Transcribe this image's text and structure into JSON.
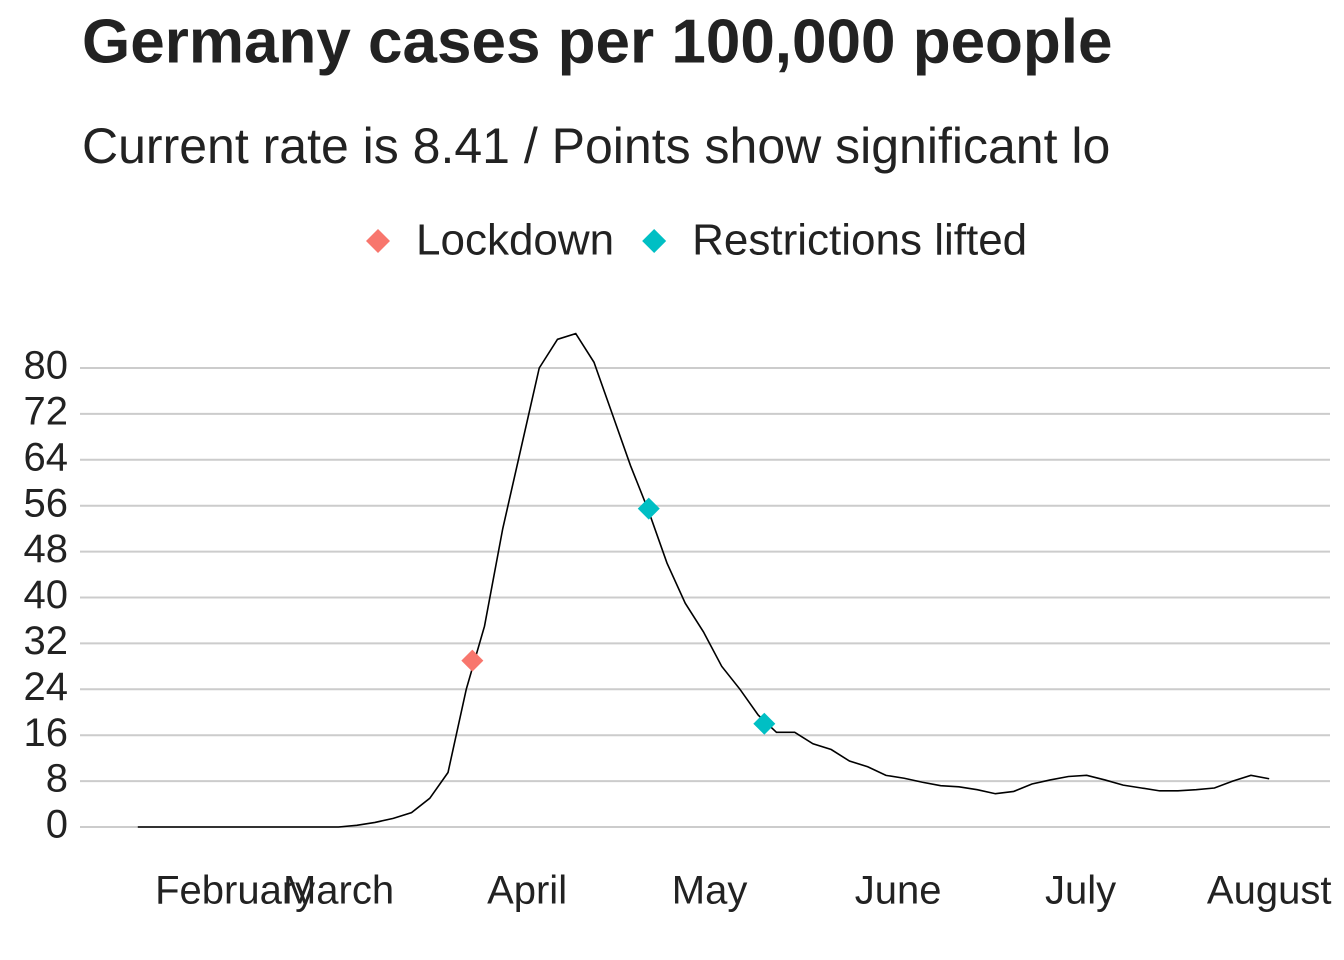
{
  "chart_data": {
    "type": "line",
    "title": "Germany cases per 100,000 people",
    "subtitle": "Current rate is  8.41  /  Points show significant lo",
    "x": [
      0,
      3,
      6,
      9,
      12,
      15,
      18,
      21,
      24,
      27,
      30,
      33,
      36,
      39,
      42,
      45,
      48,
      51,
      54,
      57,
      60,
      63,
      66,
      69,
      72,
      75,
      78,
      81,
      84,
      87,
      90,
      93,
      96,
      99,
      102,
      105,
      108,
      111,
      114,
      117,
      120,
      123,
      126,
      129,
      132,
      135,
      138,
      141,
      144,
      147,
      150,
      153,
      156,
      159,
      162,
      165,
      168,
      171,
      174,
      177,
      180,
      183,
      186
    ],
    "series": [
      {
        "color": "#000000",
        "values": [
          0,
          0,
          0,
          0,
          0,
          0,
          0,
          0,
          0,
          0,
          0,
          0,
          0.3,
          0.8,
          1.5,
          2.5,
          5,
          9.5,
          24,
          35,
          52,
          66,
          80,
          85,
          86,
          81,
          72,
          63,
          55,
          46,
          39,
          34,
          28,
          24,
          19.5,
          16.5,
          16.5,
          14.5,
          13.5,
          11.5,
          10.5,
          9,
          8.5,
          7.8,
          7.2,
          7,
          6.5,
          5.8,
          6.2,
          7.5,
          8.2,
          8.8,
          9,
          8.2,
          7.3,
          6.8,
          6.3,
          6.3,
          6.5,
          6.8,
          8,
          9,
          8.41
        ]
      }
    ],
    "points": [
      {
        "name": "Lockdown",
        "color": "#f8766d",
        "x": [
          55
        ],
        "values": [
          29
        ]
      },
      {
        "name": "Restrictions lifted",
        "color": "#00bfc4",
        "x": [
          84,
          103
        ],
        "values": [
          55.5,
          18
        ]
      }
    ],
    "xlim": [
      -9.5,
      196
    ],
    "xticks": [
      {
        "value": 16,
        "label": "February"
      },
      {
        "value": 33,
        "label": "March"
      },
      {
        "value": 64,
        "label": "April"
      },
      {
        "value": 94,
        "label": "May"
      },
      {
        "value": 125,
        "label": "June"
      },
      {
        "value": 155,
        "label": "July"
      },
      {
        "value": 186,
        "label": "August"
      }
    ],
    "ylim": [
      0,
      80
    ],
    "yticks": [
      0,
      8,
      16,
      24,
      32,
      40,
      48,
      56,
      64,
      72,
      80
    ],
    "grid": true
  }
}
